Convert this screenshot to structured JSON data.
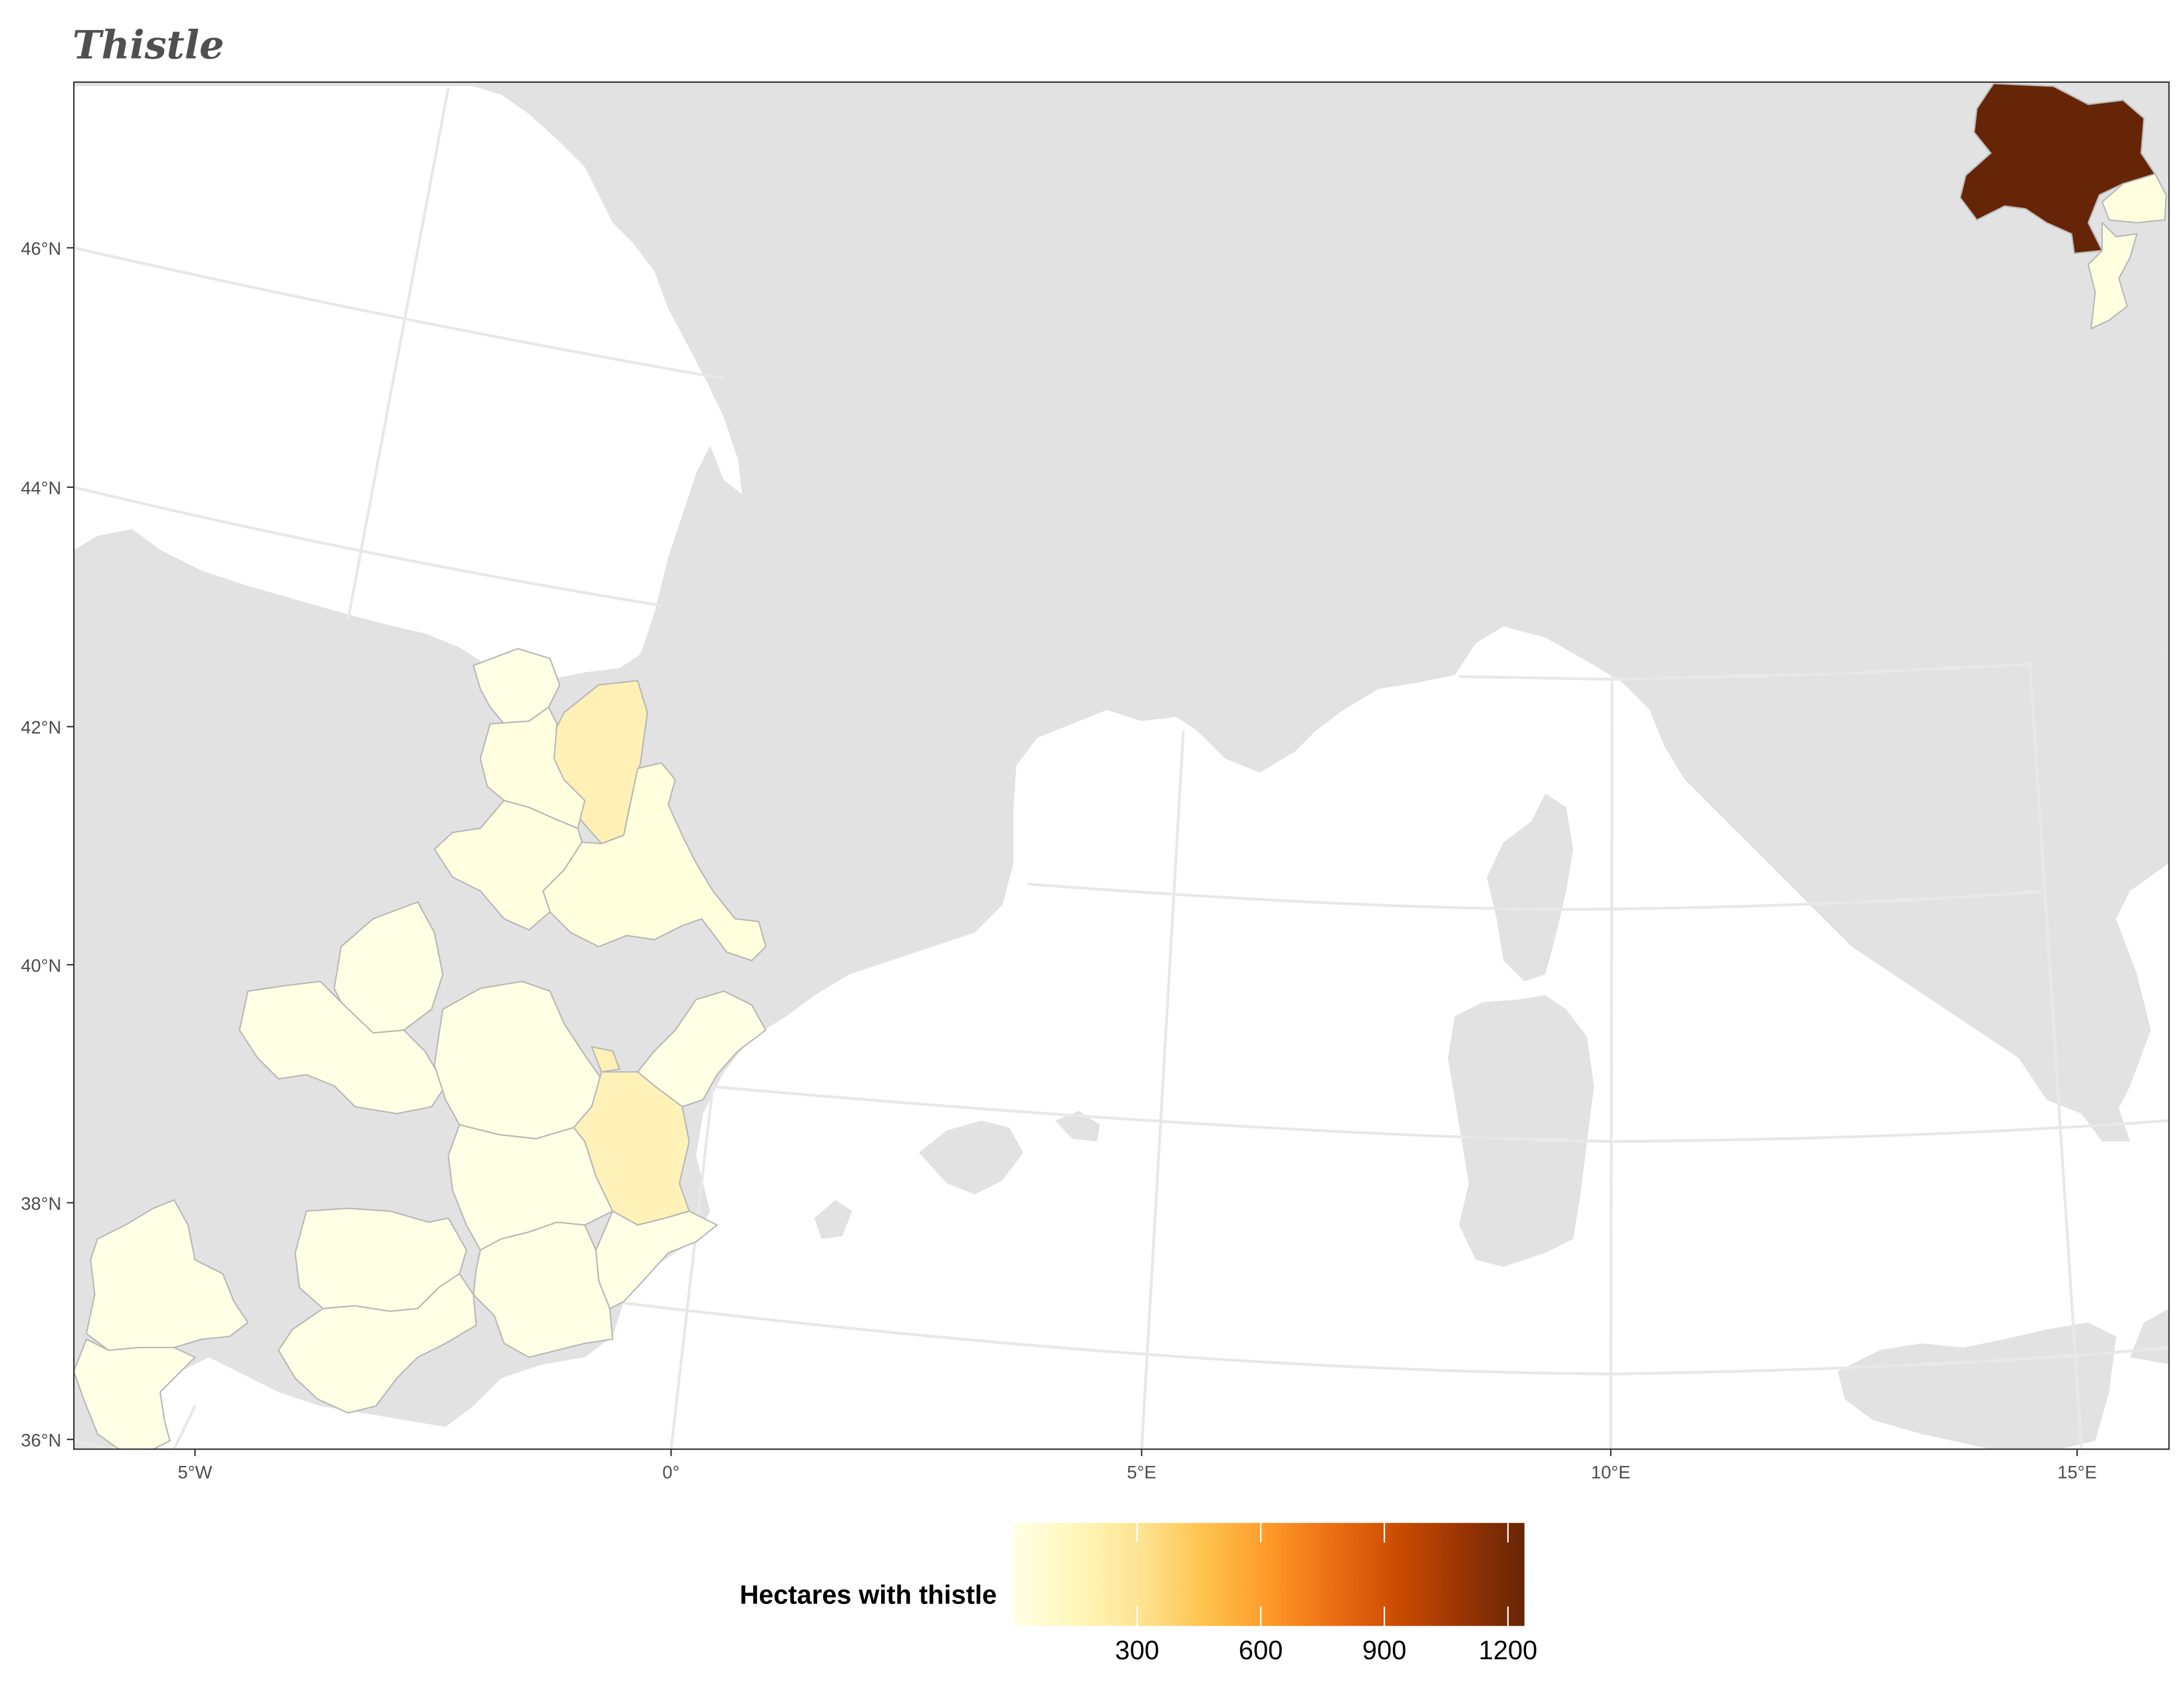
{
  "title": "Thistle",
  "axes": {
    "x_ticks": [
      "5°W",
      "0°",
      "5°E",
      "10°E",
      "15°E"
    ],
    "y_ticks": [
      "46°N",
      "44°N",
      "42°N",
      "40°N",
      "38°N",
      "36°N"
    ]
  },
  "legend": {
    "title": "Hectares with thistle",
    "ticks": [
      "300",
      "600",
      "900",
      "1200"
    ],
    "min": 0,
    "max": 1240,
    "colors": [
      "#ffffe5",
      "#fff7bc",
      "#fee391",
      "#fec44f",
      "#fe9929",
      "#ec7014",
      "#cc4c02",
      "#993404",
      "#662506"
    ]
  },
  "colors": {
    "land": "#e2e2e2",
    "sea": "#ffffff",
    "graticule": "#e8e8e8",
    "region_border": "#b8b8b8",
    "panel_border": "#333333"
  },
  "chart_data": {
    "type": "choropleth",
    "title": "Thistle",
    "legend_title": "Hectares with thistle",
    "value_range": [
      0,
      1240
    ],
    "regions": [
      {
        "value": 1200,
        "color": "#662506"
      },
      {
        "value": 45,
        "color": "#ffffe0"
      },
      {
        "value": 40,
        "color": "#ffffe0"
      },
      {
        "value": 30,
        "color": "#ffffe5"
      },
      {
        "value": 150,
        "color": "#fff1b5"
      },
      {
        "value": 140,
        "color": "#fff2b8"
      },
      {
        "value": 50,
        "color": "#ffffde"
      },
      {
        "value": 35,
        "color": "#ffffe5"
      },
      {
        "value": 25,
        "color": "#ffffe5"
      }
    ]
  }
}
